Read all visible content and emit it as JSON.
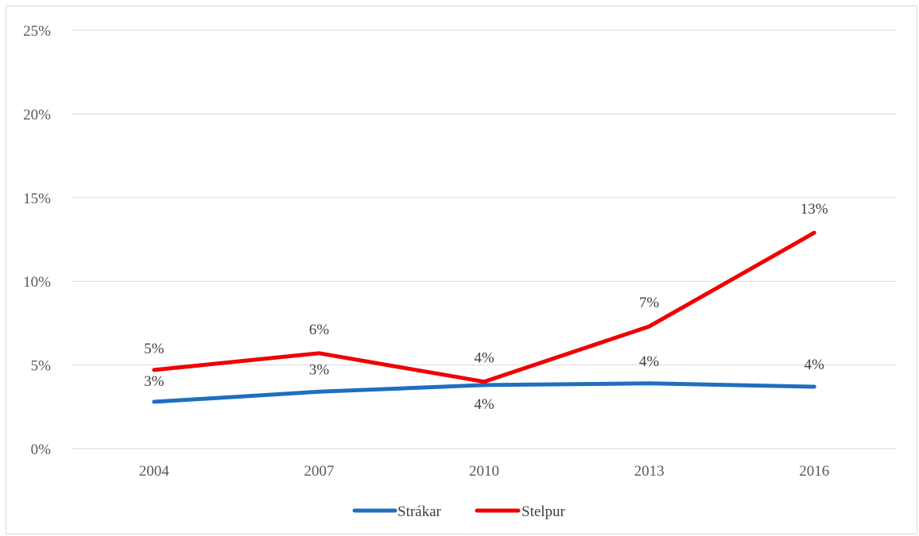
{
  "chart_data": {
    "type": "line",
    "categories": [
      "2004",
      "2007",
      "2010",
      "2013",
      "2016"
    ],
    "y_ticks": [
      "0%",
      "5%",
      "10%",
      "15%",
      "20%",
      "25%"
    ],
    "ylim": [
      0,
      25
    ],
    "grid": true,
    "legend_position": "bottom",
    "series": [
      {
        "name": "Strákar",
        "color": "#1f6fbf",
        "values": [
          2.8,
          3.4,
          3.8,
          3.9,
          3.7
        ],
        "labels": [
          "3%",
          "3%",
          "4%",
          "4%",
          "4%"
        ]
      },
      {
        "name": "Stelpur",
        "color": "#f00000",
        "values": [
          4.7,
          5.7,
          4.0,
          7.3,
          12.9
        ],
        "labels": [
          "5%",
          "6%",
          "4%",
          "7%",
          "13%"
        ]
      }
    ]
  }
}
